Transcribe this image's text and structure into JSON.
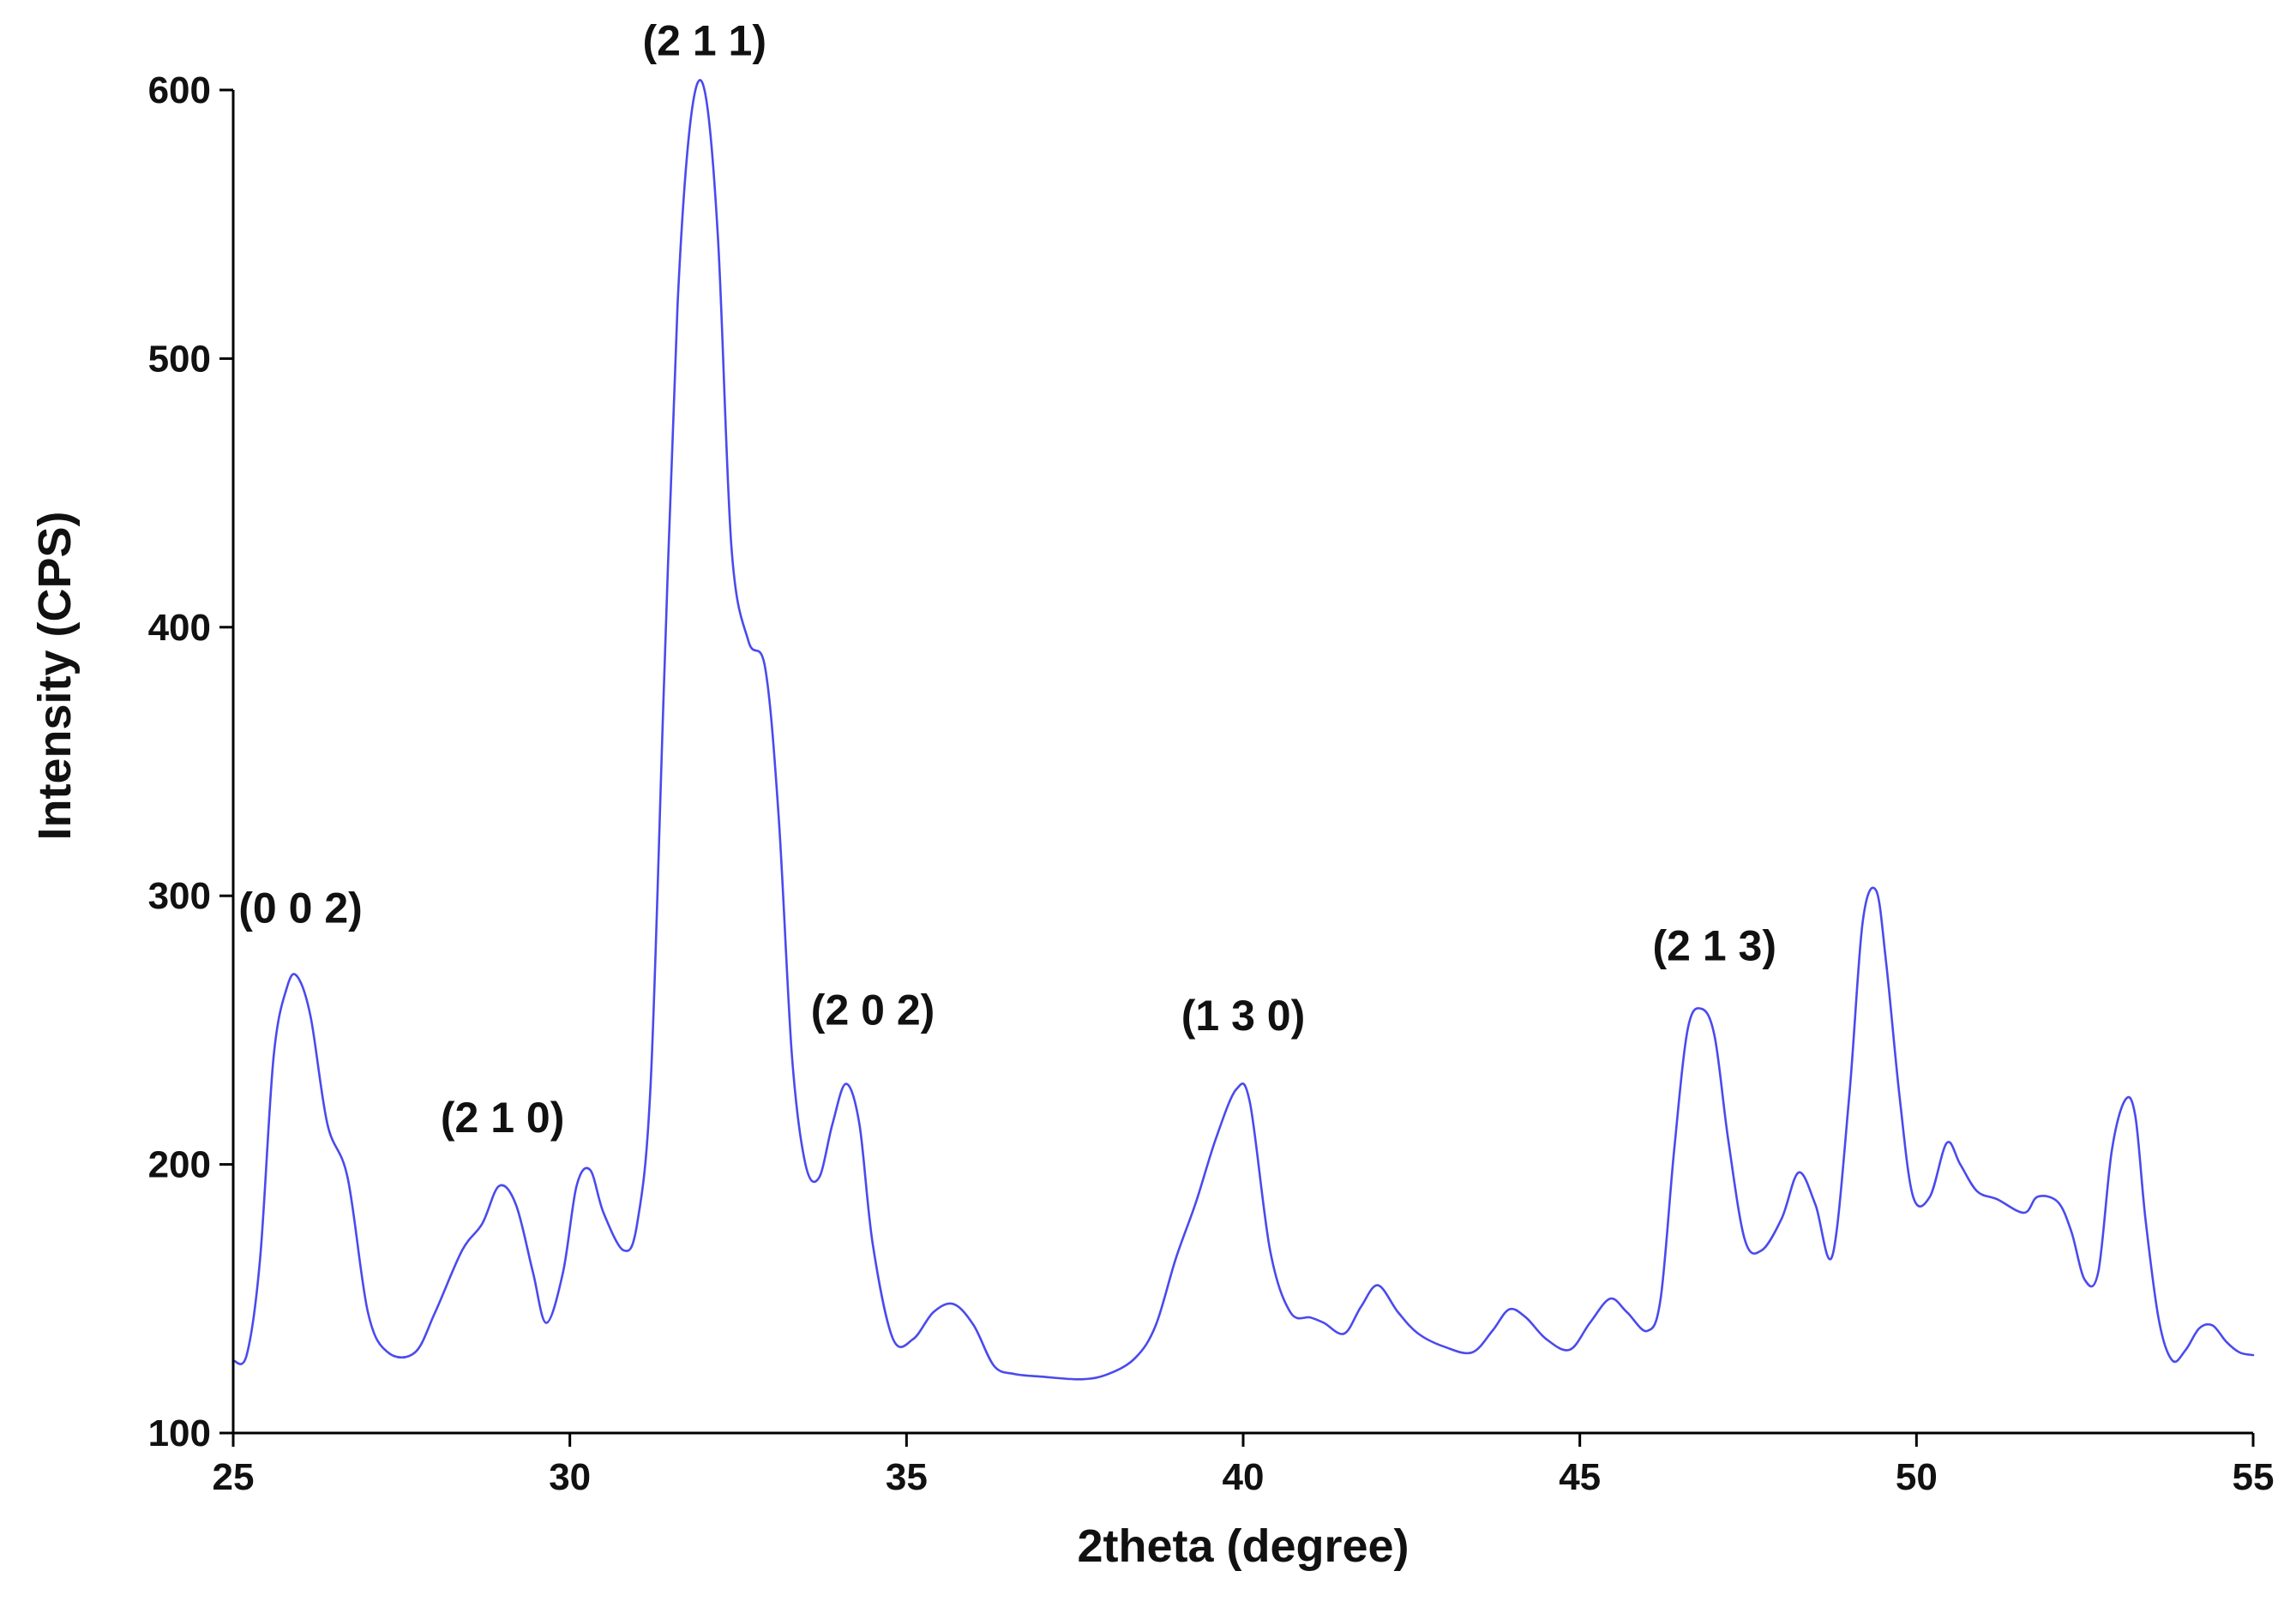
{
  "chart_data": {
    "type": "line",
    "title": "",
    "xlabel": "2theta (degree)",
    "ylabel": "Intensity (CPS)",
    "xlim": [
      25,
      55
    ],
    "ylim": [
      100,
      600
    ],
    "xticks": [
      25,
      30,
      35,
      40,
      45,
      50,
      55
    ],
    "yticks": [
      100,
      200,
      300,
      400,
      500,
      600
    ],
    "grid": false,
    "line_color": "#4a4aee",
    "series": [
      {
        "x": [
          25.0,
          25.2,
          25.4,
          25.6,
          25.8,
          25.95,
          26.15,
          26.4,
          26.7,
          27.0,
          27.3,
          27.7,
          28.0,
          28.4,
          28.7,
          28.95,
          29.2,
          29.45,
          29.65,
          29.9,
          30.1,
          30.3,
          30.5,
          30.8,
          31.0,
          31.2,
          31.4,
          31.6,
          31.8,
          32.0,
          32.2,
          32.4,
          32.65,
          32.9,
          33.1,
          33.3,
          33.5,
          33.7,
          33.9,
          34.1,
          34.3,
          34.5,
          34.8,
          35.1,
          35.4,
          35.7,
          36.0,
          36.3,
          36.6,
          37.0,
          37.6,
          38.0,
          38.4,
          38.7,
          39.0,
          39.3,
          39.6,
          39.9,
          40.1,
          40.4,
          40.7,
          41.0,
          41.2,
          41.5,
          41.75,
          42.0,
          42.3,
          42.6,
          43.0,
          43.4,
          43.7,
          43.95,
          44.2,
          44.5,
          44.85,
          45.15,
          45.45,
          45.7,
          46.0,
          46.2,
          46.4,
          46.6,
          46.8,
          47.0,
          47.2,
          47.45,
          47.7,
          48.0,
          48.25,
          48.5,
          48.75,
          49.0,
          49.2,
          49.4,
          49.55,
          49.75,
          49.95,
          50.2,
          50.45,
          50.65,
          50.9,
          51.2,
          51.6,
          51.8,
          52.1,
          52.3,
          52.5,
          52.7,
          52.9,
          53.1,
          53.25,
          53.4,
          53.6,
          53.8,
          54.0,
          54.2,
          54.4,
          54.6,
          54.8,
          55.0
        ],
        "y": [
          127,
          129,
          165,
          240,
          266,
          270,
          255,
          215,
          195,
          145,
          130,
          130,
          145,
          168,
          178,
          192,
          185,
          160,
          141,
          160,
          192,
          198,
          182,
          168,
          178,
          230,
          380,
          520,
          590,
          600,
          545,
          430,
          395,
          385,
          330,
          240,
          200,
          195,
          215,
          230,
          215,
          170,
          135,
          135,
          145,
          148,
          140,
          125,
          122,
          121,
          120,
          122,
          128,
          140,
          165,
          186,
          210,
          228,
          223,
          168,
          145,
          143,
          141,
          137,
          147,
          155,
          145,
          137,
          132,
          130,
          138,
          146,
          143,
          135,
          131,
          141,
          150,
          145,
          138,
          150,
          205,
          250,
          258,
          248,
          210,
          172,
          168,
          180,
          197,
          185,
          166,
          225,
          290,
          302,
          275,
          225,
          188,
          188,
          208,
          200,
          190,
          187,
          182,
          188,
          186,
          175,
          157,
          160,
          205,
          224,
          218,
          180,
          142,
          127,
          131,
          139,
          140,
          134,
          130,
          129
        ]
      }
    ],
    "annotations": [
      {
        "text": "(0 0 2)",
        "x": 26.0,
        "y": 290
      },
      {
        "text": "(2 1 0)",
        "x": 29.0,
        "y": 212
      },
      {
        "text": "(2 1 1)",
        "x": 32.0,
        "y": 613
      },
      {
        "text": "(2 0 2)",
        "x": 34.5,
        "y": 252
      },
      {
        "text": "(1 3 0)",
        "x": 40.0,
        "y": 250
      },
      {
        "text": "(2 1 3)",
        "x": 47.0,
        "y": 276
      }
    ]
  }
}
